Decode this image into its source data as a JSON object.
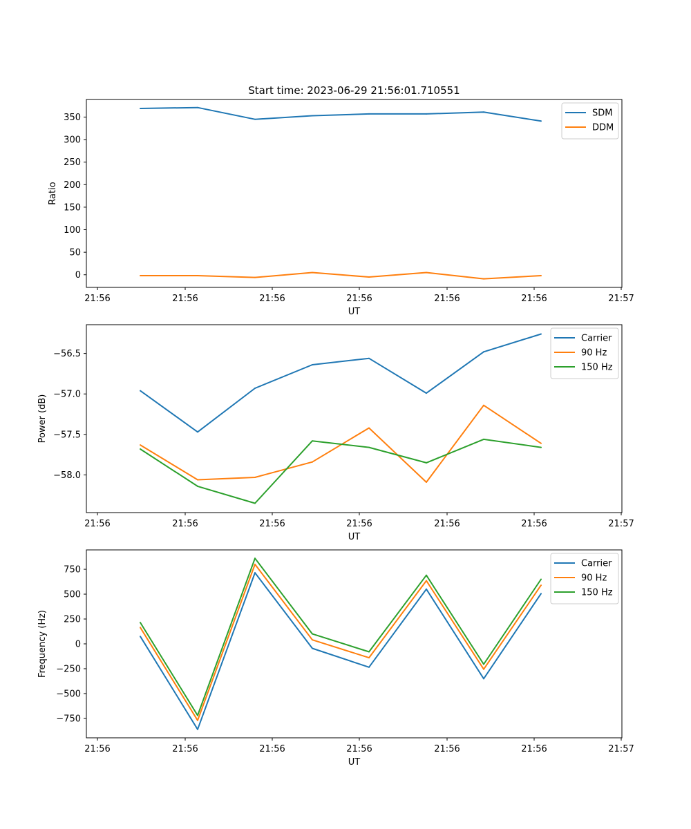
{
  "figure": {
    "title": "Start time: 2023-06-29 21:56:01.710551"
  },
  "chart_data": [
    {
      "type": "line",
      "title": "Start time: 2023-06-29 21:56:01.710551",
      "xlabel": "UT",
      "ylabel": "Ratio",
      "x_tick_labels": [
        "21:56",
        "21:56",
        "21:56",
        "21:56",
        "21:56",
        "21:56",
        "21:57"
      ],
      "y_ticks": [
        0,
        50,
        100,
        150,
        200,
        250,
        300,
        350
      ],
      "ylim": [
        -28,
        389
      ],
      "grid": false,
      "legend_position": "upper right",
      "series": [
        {
          "name": "SDM",
          "color": "#1f77b4",
          "values": [
            369,
            371,
            345,
            353,
            357,
            357,
            361,
            341
          ]
        },
        {
          "name": "DDM",
          "color": "#ff7f0e",
          "values": [
            -2,
            -2,
            -6,
            5,
            -5,
            5,
            -9,
            -2
          ]
        }
      ]
    },
    {
      "type": "line",
      "title": "",
      "xlabel": "UT",
      "ylabel": "Power (dB)",
      "x_tick_labels": [
        "21:56",
        "21:56",
        "21:56",
        "21:56",
        "21:56",
        "21:56",
        "21:57"
      ],
      "y_ticks": [
        -58.0,
        -57.5,
        -57.0,
        -56.5
      ],
      "y_tick_labels": [
        "−58.0",
        "−57.5",
        "−57.0",
        "−56.5"
      ],
      "ylim": [
        -58.465,
        -56.145
      ],
      "grid": false,
      "legend_position": "upper right",
      "series": [
        {
          "name": "Carrier",
          "color": "#1f77b4",
          "values": [
            -56.96,
            -57.47,
            -56.93,
            -56.64,
            -56.56,
            -56.99,
            -56.48,
            -56.26
          ]
        },
        {
          "name": "90 Hz",
          "color": "#ff7f0e",
          "values": [
            -57.63,
            -58.06,
            -58.03,
            -57.84,
            -57.42,
            -58.09,
            -57.14,
            -57.61
          ]
        },
        {
          "name": "150 Hz",
          "color": "#2ca02c",
          "values": [
            -57.68,
            -58.14,
            -58.35,
            -57.58,
            -57.66,
            -57.85,
            -57.56,
            -57.66
          ]
        }
      ]
    },
    {
      "type": "line",
      "title": "",
      "xlabel": "UT",
      "ylabel": "Frequency (Hz)",
      "x_tick_labels": [
        "21:56",
        "21:56",
        "21:56",
        "21:56",
        "21:56",
        "21:56",
        "21:57"
      ],
      "y_ticks": [
        -750,
        -500,
        -250,
        0,
        250,
        500,
        750
      ],
      "y_tick_labels": [
        "−750",
        "−500",
        "−250",
        "0",
        "250",
        "500",
        "750"
      ],
      "ylim": [
        -945,
        945
      ],
      "grid": false,
      "legend_position": "upper right",
      "series": [
        {
          "name": "Carrier",
          "color": "#1f77b4",
          "values": [
            75,
            -860,
            715,
            -45,
            -235,
            550,
            -350,
            505
          ]
        },
        {
          "name": "90 Hz",
          "color": "#ff7f0e",
          "values": [
            165,
            -770,
            800,
            40,
            -140,
            635,
            -255,
            590
          ]
        },
        {
          "name": "150 Hz",
          "color": "#2ca02c",
          "values": [
            215,
            -720,
            860,
            100,
            -80,
            690,
            -205,
            650
          ]
        }
      ]
    }
  ]
}
